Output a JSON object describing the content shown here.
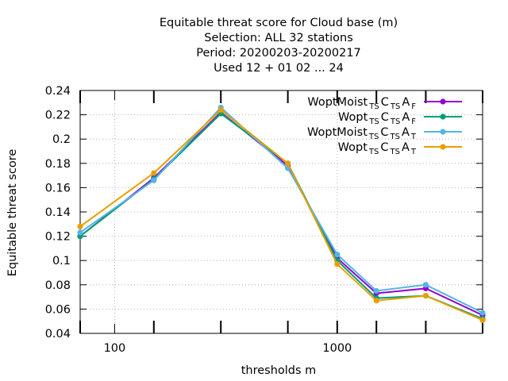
{
  "chart_data": {
    "type": "line",
    "title_lines": [
      "Equitable threat score  for Cloud base (m)",
      "Selection: ALL     32 stations",
      "Period: 20200203-20200217",
      "Used  12 + 01 02 ... 24"
    ],
    "xlabel": "thresholds m",
    "ylabel": "Equitable threat score",
    "xscale": "log",
    "xlim": [
      70,
      4500
    ],
    "ylim": [
      0.04,
      0.24
    ],
    "x_tick_labels": [
      "100",
      "1000"
    ],
    "y_tick_labels": [
      "0.04",
      "0.06",
      "0.08",
      "0.1",
      "0.12",
      "0.14",
      "0.16",
      "0.18",
      "0.2",
      "0.22",
      "0.24"
    ],
    "grid": true,
    "legend_position": "top-right",
    "x": [
      70,
      150,
      300,
      600,
      1000,
      1500,
      2500,
      4500
    ],
    "series": [
      {
        "name": "WoptMoist TS C TS A F",
        "label_parts": [
          {
            "t": "WoptMoist",
            "sub": false
          },
          {
            "t": "TS",
            "sub": true
          },
          {
            "t": "C",
            "sub": false
          },
          {
            "t": "TS",
            "sub": true
          },
          {
            "t": "A",
            "sub": false
          },
          {
            "t": "F",
            "sub": true
          }
        ],
        "color": "#9400d3",
        "values": [
          0.12,
          0.168,
          0.222,
          0.178,
          0.102,
          0.073,
          0.077,
          0.055
        ]
      },
      {
        "name": "Wopt TS C TS A F",
        "label_parts": [
          {
            "t": "Wopt",
            "sub": false
          },
          {
            "t": "TS",
            "sub": true
          },
          {
            "t": "C",
            "sub": false
          },
          {
            "t": "TS",
            "sub": true
          },
          {
            "t": "A",
            "sub": false
          },
          {
            "t": "F",
            "sub": true
          }
        ],
        "color": "#009e73",
        "values": [
          0.12,
          0.167,
          0.221,
          0.18,
          0.1,
          0.069,
          0.071,
          0.052
        ]
      },
      {
        "name": "WoptMoist TS C TS A T",
        "label_parts": [
          {
            "t": "WoptMoist",
            "sub": false
          },
          {
            "t": "TS",
            "sub": true
          },
          {
            "t": "C",
            "sub": false
          },
          {
            "t": "TS",
            "sub": true
          },
          {
            "t": "A",
            "sub": false
          },
          {
            "t": "T",
            "sub": true
          }
        ],
        "color": "#56b4e9",
        "values": [
          0.123,
          0.166,
          0.226,
          0.176,
          0.105,
          0.075,
          0.08,
          0.057
        ]
      },
      {
        "name": "Wopt TS C TS A T",
        "label_parts": [
          {
            "t": "Wopt",
            "sub": false
          },
          {
            "t": "TS",
            "sub": true
          },
          {
            "t": "C",
            "sub": false
          },
          {
            "t": "TS",
            "sub": true
          },
          {
            "t": "A",
            "sub": false
          },
          {
            "t": "T",
            "sub": true
          }
        ],
        "color": "#e69f00",
        "values": [
          0.128,
          0.172,
          0.224,
          0.18,
          0.097,
          0.067,
          0.071,
          0.051
        ]
      }
    ]
  }
}
